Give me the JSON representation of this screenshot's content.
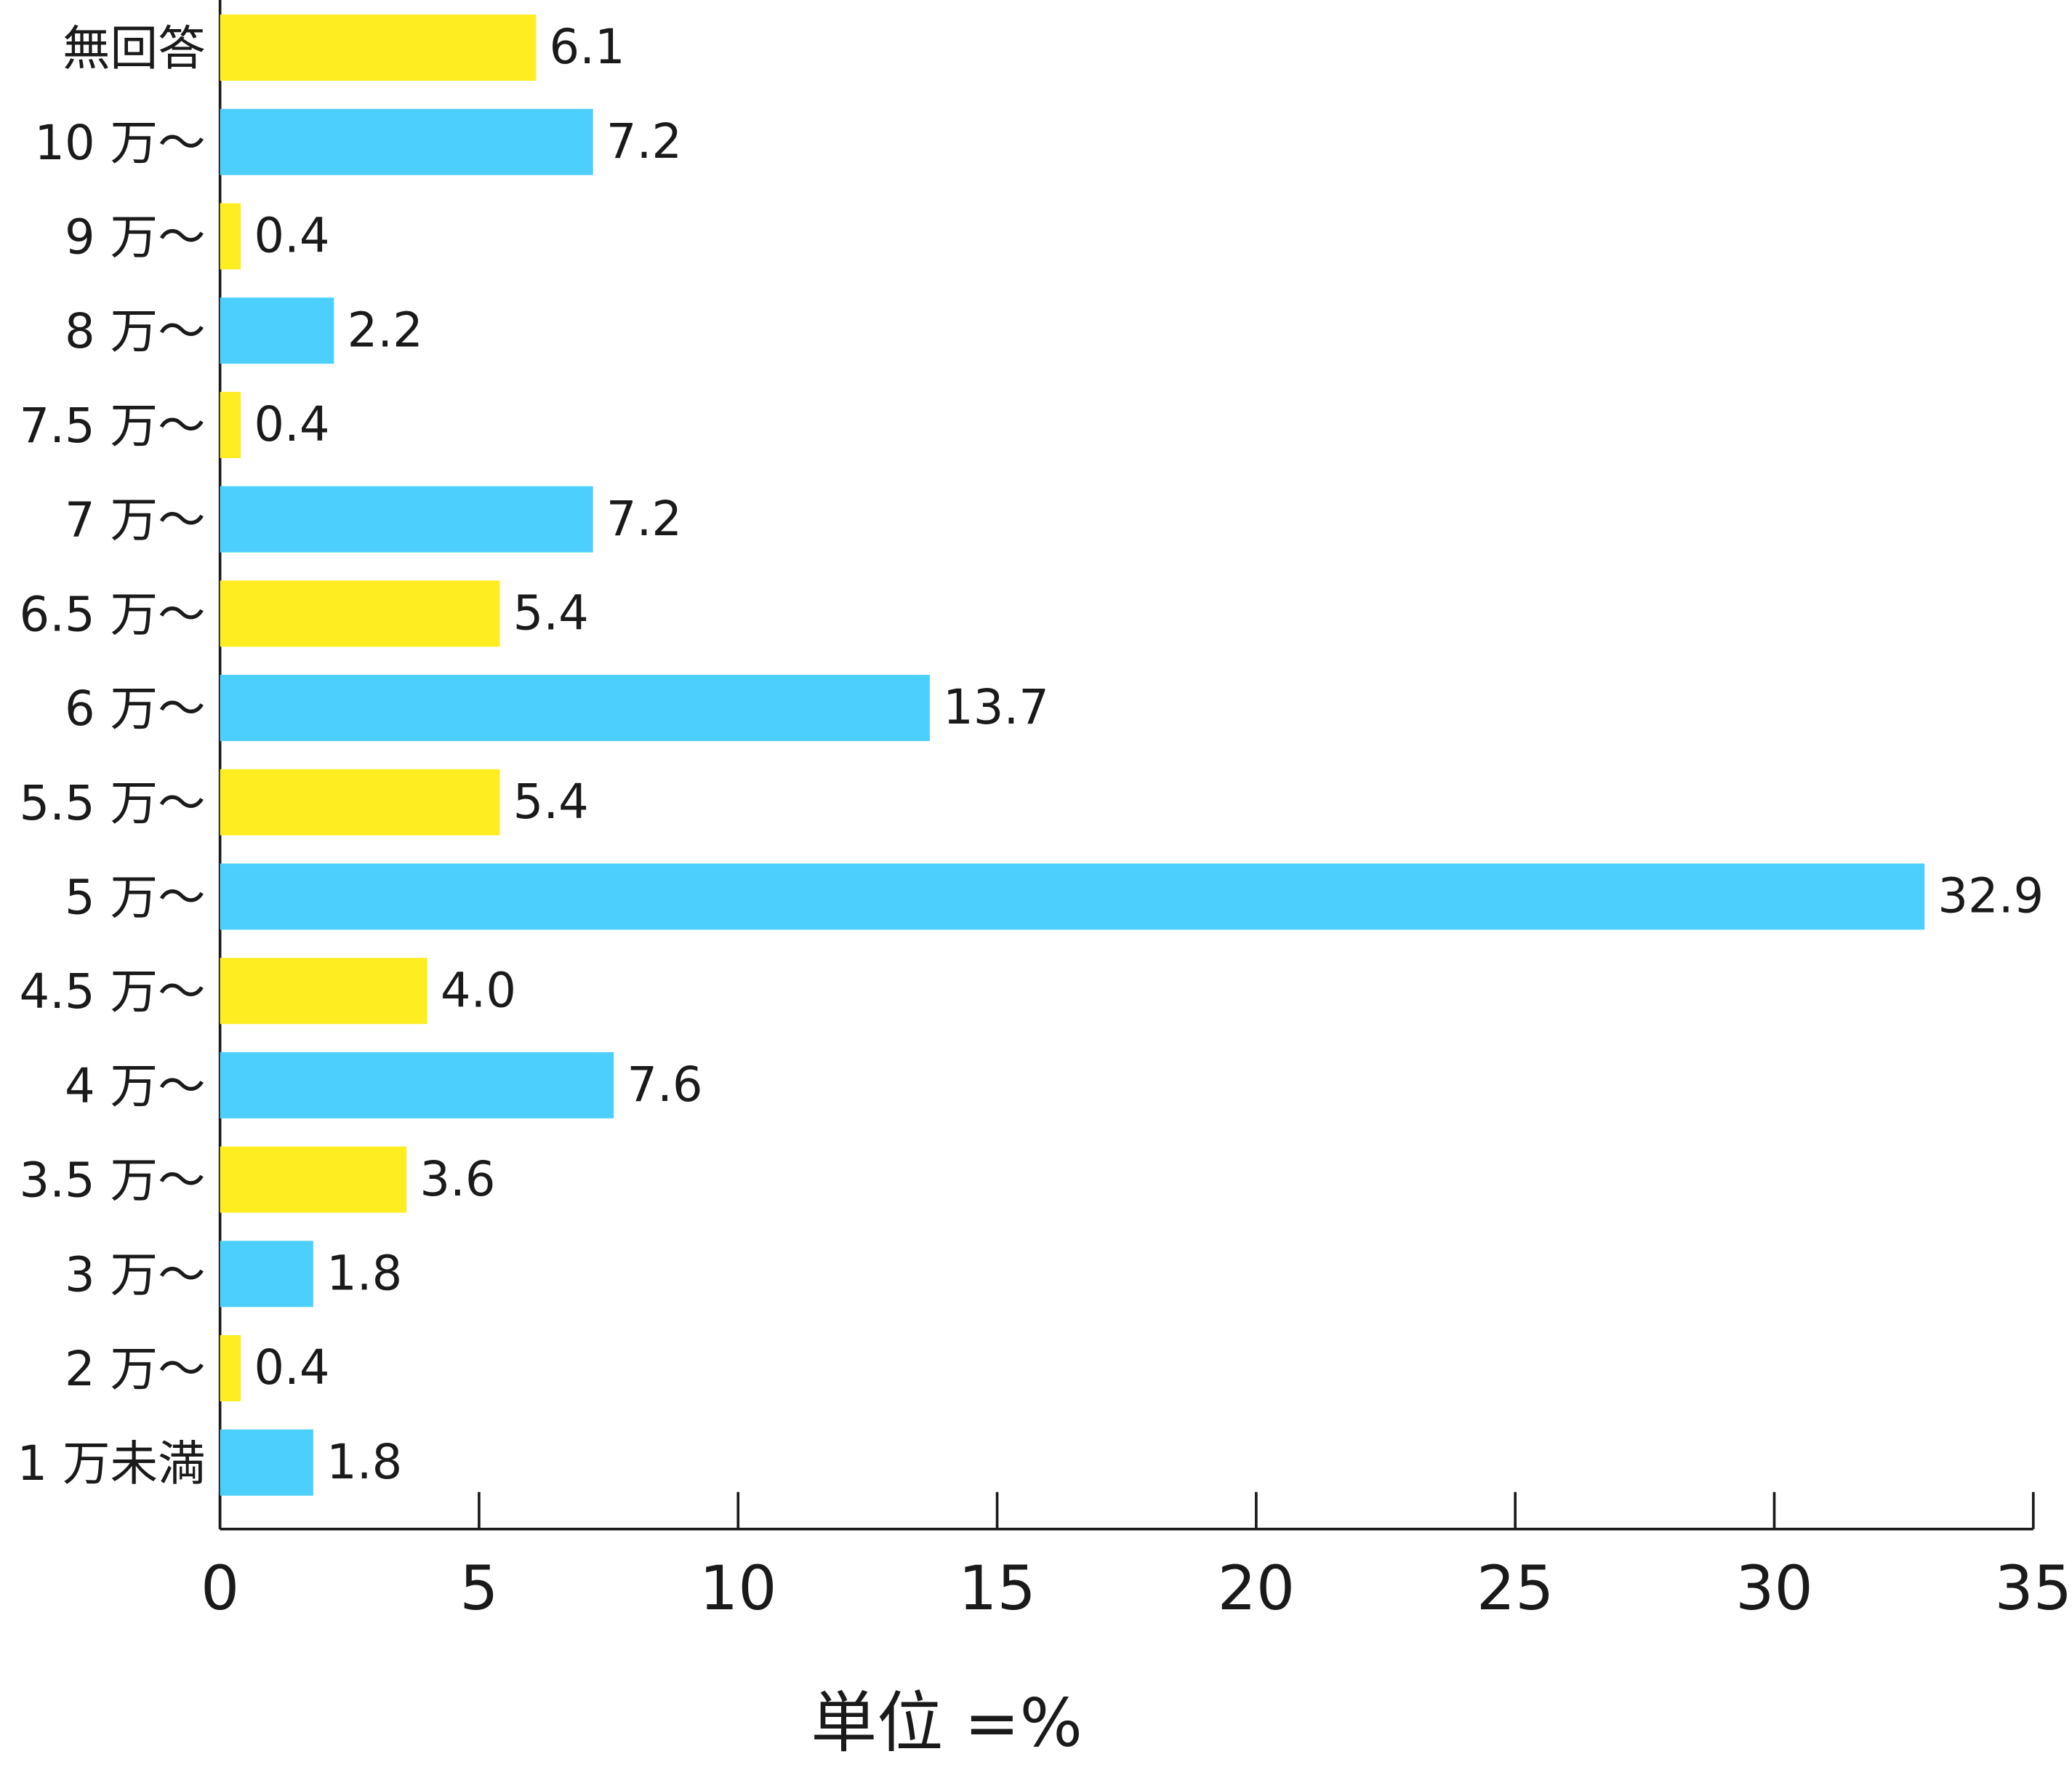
{
  "chart_data": {
    "type": "barh",
    "categories": [
      "無回答",
      "10 万～",
      "9 万～",
      "8 万～",
      "7.5 万～",
      "7 万～",
      "6.5 万～",
      "6 万～",
      "5.5 万～",
      "5 万～",
      "4.5 万～",
      "4 万～",
      "3.5 万～",
      "3 万～",
      "2 万～",
      "1 万未満"
    ],
    "values": [
      6.1,
      7.2,
      0.4,
      2.2,
      0.4,
      7.2,
      5.4,
      13.7,
      5.4,
      32.9,
      4.0,
      7.6,
      3.6,
      1.8,
      0.4,
      1.8
    ],
    "value_labels": [
      "6.1",
      "7.2",
      "0.4",
      "2.2",
      "0.4",
      "7.2",
      "5.4",
      "13.7",
      "5.4",
      "32.9",
      "4.0",
      "7.6",
      "3.6",
      "1.8",
      "0.4",
      "1.8"
    ],
    "colors": [
      "#fded21",
      "#4dcffe",
      "#fded21",
      "#4dcffe",
      "#fded21",
      "#4dcffe",
      "#fded21",
      "#4dcffe",
      "#fded21",
      "#4dcffe",
      "#fded21",
      "#4dcffe",
      "#fded21",
      "#4dcffe",
      "#fded21",
      "#4dcffe"
    ],
    "xlim": [
      0,
      35
    ],
    "xticks": [
      0,
      5,
      10,
      15,
      20,
      25,
      30,
      35
    ],
    "xlabel": "単位 =%",
    "grid": false
  }
}
